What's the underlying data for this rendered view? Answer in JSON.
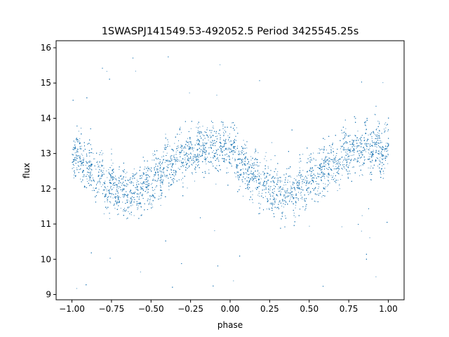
{
  "chart_data": {
    "type": "scatter",
    "title": "1SWASPJ141549.53-492052.5 Period 3425545.25s",
    "xlabel": "phase",
    "ylabel": "flux",
    "xlim": [
      -1.1,
      1.1
    ],
    "ylim": [
      8.85,
      16.2
    ],
    "xticks": [
      -1.0,
      -0.75,
      -0.5,
      -0.25,
      0.0,
      0.25,
      0.5,
      0.75,
      1.0
    ],
    "xtick_labels": [
      "−1.00",
      "−0.75",
      "−0.50",
      "−0.25",
      "0.00",
      "0.25",
      "0.50",
      "0.75",
      "1.00"
    ],
    "yticks": [
      9,
      10,
      11,
      12,
      13,
      14,
      15,
      16
    ],
    "ytick_labels": [
      "9",
      "10",
      "11",
      "12",
      "13",
      "14",
      "15",
      "16"
    ],
    "grid": false,
    "marker_color": "#1f77b4",
    "series": [
      {
        "x_range": [
          -1.0,
          1.0
        ],
        "phase_folded": true,
        "approx_points": 9000,
        "profile": {
          "phase": [
            0.0,
            0.1,
            0.2,
            0.3,
            0.4,
            0.5,
            0.6,
            0.7,
            0.8,
            0.9,
            1.0
          ],
          "flux": [
            13.1,
            12.6,
            12.2,
            11.9,
            11.9,
            12.2,
            12.6,
            12.9,
            13.2,
            13.2,
            13.1
          ]
        },
        "typical_spread": 0.35,
        "outlier_range": [
          9.1,
          15.8
        ]
      }
    ]
  }
}
